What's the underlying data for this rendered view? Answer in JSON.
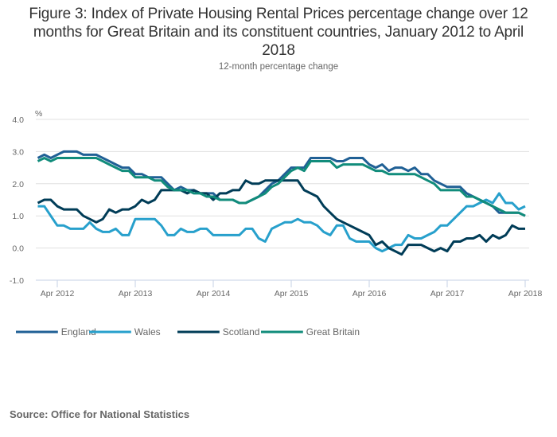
{
  "chart_data": {
    "type": "line",
    "title": "Figure 3: Index of Private Housing Rental Prices percentage change over 12 months for Great Britain and its constituent countries, January 2012 to April 2018",
    "subtitle": "12-month percentage change",
    "ylabel": "%",
    "xlabel": "",
    "ylim": [
      -1.0,
      4.0
    ],
    "yticks": [
      -1.0,
      0.0,
      1.0,
      2.0,
      3.0,
      4.0
    ],
    "ytick_labels": [
      "-1.0",
      "0.0",
      "1.0",
      "2.0",
      "3.0",
      "4.0"
    ],
    "x_start": "Jan 2012",
    "x_end": "Apr 2018",
    "x_months_count": 76,
    "xtick_labels": [
      "Apr 2012",
      "Apr 2013",
      "Apr 2014",
      "Apr 2015",
      "Apr 2016",
      "Apr 2017",
      "Apr 2018"
    ],
    "xtick_month_index": [
      3,
      15,
      27,
      39,
      51,
      63,
      75
    ],
    "grid": true,
    "legend_position": "bottom-left",
    "series": [
      {
        "name": "England",
        "color": "#206095",
        "values": [
          2.8,
          2.9,
          2.8,
          2.9,
          3.0,
          3.0,
          3.0,
          2.9,
          2.9,
          2.9,
          2.8,
          2.7,
          2.6,
          2.5,
          2.5,
          2.3,
          2.3,
          2.2,
          2.2,
          2.2,
          2.0,
          1.8,
          1.9,
          1.8,
          1.8,
          1.7,
          1.7,
          1.7,
          1.5,
          1.5,
          1.5,
          1.4,
          1.4,
          1.5,
          1.6,
          1.8,
          2.0,
          2.1,
          2.3,
          2.5,
          2.5,
          2.5,
          2.8,
          2.8,
          2.8,
          2.8,
          2.7,
          2.7,
          2.8,
          2.8,
          2.8,
          2.6,
          2.5,
          2.6,
          2.4,
          2.5,
          2.5,
          2.4,
          2.5,
          2.3,
          2.3,
          2.1,
          2.0,
          1.9,
          1.9,
          1.9,
          1.7,
          1.6,
          1.5,
          1.4,
          1.3,
          1.1,
          1.1,
          1.1,
          1.1,
          1.0
        ]
      },
      {
        "name": "Wales",
        "color": "#27a0cc",
        "values": [
          1.3,
          1.3,
          1.0,
          0.7,
          0.7,
          0.6,
          0.6,
          0.6,
          0.8,
          0.6,
          0.5,
          0.5,
          0.6,
          0.4,
          0.4,
          0.9,
          0.9,
          0.9,
          0.9,
          0.7,
          0.4,
          0.4,
          0.6,
          0.5,
          0.5,
          0.6,
          0.6,
          0.4,
          0.4,
          0.4,
          0.4,
          0.4,
          0.6,
          0.6,
          0.3,
          0.2,
          0.6,
          0.7,
          0.8,
          0.8,
          0.9,
          0.8,
          0.8,
          0.7,
          0.5,
          0.4,
          0.7,
          0.7,
          0.3,
          0.2,
          0.2,
          0.2,
          0.0,
          -0.1,
          0.0,
          0.1,
          0.1,
          0.4,
          0.3,
          0.3,
          0.4,
          0.5,
          0.7,
          0.7,
          0.9,
          1.1,
          1.3,
          1.3,
          1.4,
          1.5,
          1.4,
          1.7,
          1.4,
          1.4,
          1.2,
          1.3
        ]
      },
      {
        "name": "Scotland",
        "color": "#003c57",
        "values": [
          1.4,
          1.5,
          1.5,
          1.3,
          1.2,
          1.2,
          1.2,
          1.0,
          0.9,
          0.8,
          0.9,
          1.2,
          1.1,
          1.2,
          1.2,
          1.3,
          1.5,
          1.4,
          1.5,
          1.8,
          1.8,
          1.8,
          1.8,
          1.7,
          1.8,
          1.7,
          1.7,
          1.5,
          1.7,
          1.7,
          1.8,
          1.8,
          2.1,
          2.0,
          2.0,
          2.1,
          2.1,
          2.1,
          2.1,
          2.1,
          2.1,
          1.8,
          1.7,
          1.6,
          1.3,
          1.1,
          0.9,
          0.8,
          0.7,
          0.6,
          0.5,
          0.4,
          0.1,
          0.2,
          0.0,
          -0.1,
          -0.2,
          0.1,
          0.1,
          0.1,
          0.0,
          -0.1,
          0.0,
          -0.1,
          0.2,
          0.2,
          0.3,
          0.3,
          0.4,
          0.2,
          0.4,
          0.3,
          0.4,
          0.7,
          0.6,
          0.6
        ]
      },
      {
        "name": "Great Britain",
        "color": "#118c7b",
        "values": [
          2.7,
          2.8,
          2.7,
          2.8,
          2.8,
          2.8,
          2.8,
          2.8,
          2.8,
          2.8,
          2.7,
          2.6,
          2.5,
          2.4,
          2.4,
          2.2,
          2.2,
          2.2,
          2.1,
          2.1,
          1.9,
          1.8,
          1.8,
          1.8,
          1.7,
          1.7,
          1.6,
          1.6,
          1.5,
          1.5,
          1.5,
          1.4,
          1.4,
          1.5,
          1.6,
          1.7,
          1.9,
          2.0,
          2.2,
          2.4,
          2.5,
          2.4,
          2.7,
          2.7,
          2.7,
          2.7,
          2.5,
          2.6,
          2.6,
          2.6,
          2.6,
          2.5,
          2.4,
          2.4,
          2.3,
          2.3,
          2.3,
          2.3,
          2.3,
          2.2,
          2.1,
          2.0,
          1.8,
          1.8,
          1.8,
          1.8,
          1.6,
          1.6,
          1.5,
          1.4,
          1.3,
          1.2,
          1.1,
          1.1,
          1.1,
          1.0
        ]
      }
    ]
  },
  "footer": {
    "source": "Source: Office for National Statistics"
  }
}
